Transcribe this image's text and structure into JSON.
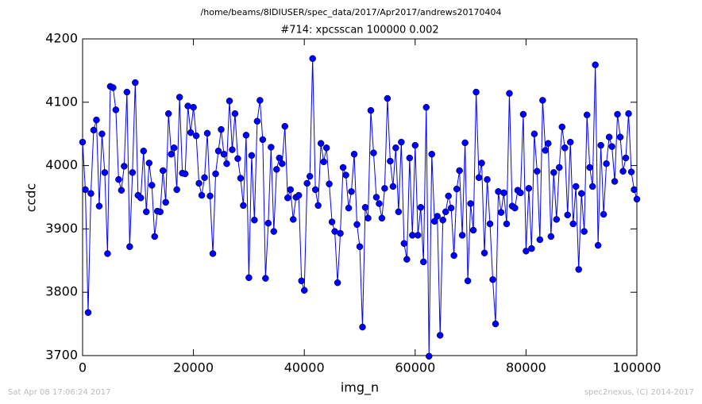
{
  "chart_data": {
    "type": "line",
    "suptitle": "/home/beams/8IDIUSER/spec_data/2017/Apr2017/andrews20170404",
    "title": "#714: xpcsscan 100000 0.002",
    "x_label": "img_n",
    "y_label": "ccdc",
    "footer_left": "Sat Apr 08 17:06:24 2017",
    "footer_right": "spec2nexus, (C) 2014-2017",
    "xlim": [
      0,
      100000
    ],
    "xticks": [
      0,
      20000,
      40000,
      60000,
      80000,
      100000
    ],
    "ylim": [
      3700,
      4200
    ],
    "yticks": [
      3700,
      3800,
      3900,
      4000,
      4100,
      4200
    ],
    "x": [
      0,
      500,
      1000,
      1500,
      2000,
      2500,
      3000,
      3500,
      4000,
      4500,
      5000,
      5500,
      6000,
      6500,
      7000,
      7500,
      8000,
      8500,
      9000,
      9500,
      10000,
      10500,
      11000,
      11500,
      12000,
      12500,
      13000,
      13500,
      14000,
      14500,
      15000,
      15500,
      16000,
      16500,
      17000,
      17500,
      18000,
      18500,
      19000,
      19500,
      20000,
      20500,
      21000,
      21500,
      22000,
      22500,
      23000,
      23500,
      24000,
      24500,
      25000,
      25500,
      26000,
      26500,
      27000,
      27500,
      28000,
      28500,
      29000,
      29500,
      30000,
      30500,
      31000,
      31500,
      32000,
      32500,
      33000,
      33500,
      34000,
      34500,
      35000,
      35500,
      36000,
      36500,
      37000,
      37500,
      38000,
      38500,
      39000,
      39500,
      40000,
      40500,
      41000,
      41500,
      42000,
      42500,
      43000,
      43500,
      44000,
      44500,
      45000,
      45500,
      46000,
      46500,
      47000,
      47500,
      48000,
      48500,
      49000,
      49500,
      50000,
      50500,
      51000,
      51500,
      52000,
      52500,
      53000,
      53500,
      54000,
      54500,
      55000,
      55500,
      56000,
      56500,
      57000,
      57500,
      58000,
      58500,
      59000,
      59500,
      60000,
      60500,
      61000,
      61500,
      62000,
      62500,
      63000,
      63500,
      64000,
      64500,
      65000,
      65500,
      66000,
      66500,
      67000,
      67500,
      68000,
      68500,
      69000,
      69500,
      70000,
      70500,
      71000,
      71500,
      72000,
      72500,
      73000,
      73500,
      74000,
      74500,
      75000,
      75500,
      76000,
      76500,
      77000,
      77500,
      78000,
      78500,
      79000,
      79500,
      80000,
      80500,
      81000,
      81500,
      82000,
      82500,
      83000,
      83500,
      84000,
      84500,
      85000,
      85500,
      86000,
      86500,
      87000,
      87500,
      88000,
      88500,
      89000,
      89500,
      90000,
      90500,
      91000,
      91500,
      92000,
      92500,
      93000,
      93500,
      94000,
      94500,
      95000,
      95500,
      96000,
      96500,
      97000,
      97500,
      98000,
      98500,
      99000,
      99500,
      100000
    ],
    "series": [
      {
        "color": "#0000ff",
        "values": [
          4037,
          3962,
          3768,
          3956,
          4056,
          4072,
          3936,
          4050,
          3989,
          3861,
          4125,
          4123,
          4088,
          3978,
          3961,
          3999,
          4116,
          3872,
          3989,
          4131,
          3953,
          3949,
          4023,
          3927,
          4004,
          3969,
          3888,
          3928,
          3927,
          3992,
          3942,
          4082,
          4018,
          4028,
          3962,
          4108,
          3988,
          3987,
          4094,
          4052,
          4092,
          4047,
          3972,
          3953,
          3981,
          4051,
          3952,
          3861,
          3987,
          4023,
          4057,
          4018,
          4003,
          4102,
          4025,
          4082,
          4011,
          3980,
          3937,
          4048,
          3823,
          4016,
          3914,
          4070,
          4103,
          4041,
          3822,
          3909,
          4029,
          3896,
          3994,
          4012,
          4003,
          4062,
          3949,
          3962,
          3915,
          3950,
          3953,
          3818,
          3803,
          3972,
          3983,
          4169,
          3962,
          3937,
          4035,
          4006,
          4028,
          3971,
          3911,
          3896,
          3815,
          3893,
          3997,
          3985,
          3933,
          3959,
          4018,
          3907,
          3872,
          3745,
          3934,
          3917,
          4087,
          4020,
          3950,
          3940,
          3917,
          3964,
          4106,
          4007,
          3967,
          4028,
          3927,
          4037,
          3877,
          3852,
          4012,
          3890,
          4032,
          3890,
          3934,
          3848,
          4092,
          3699,
          4018,
          3912,
          3920,
          3732,
          3914,
          3927,
          3952,
          3933,
          3858,
          3963,
          3992,
          3890,
          4036,
          3818,
          3940,
          3898,
          4116,
          3981,
          4004,
          3862,
          3978,
          3908,
          3820,
          3750,
          3959,
          3926,
          3957,
          3908,
          4114,
          3936,
          3933,
          3961,
          3957,
          4081,
          3865,
          3964,
          3869,
          4050,
          3991,
          3883,
          4103,
          4024,
          4035,
          3888,
          3989,
          3915,
          3997,
          4061,
          4028,
          3922,
          4037,
          3908,
          3967,
          3836,
          3956,
          3896,
          4080,
          3997,
          3967,
          4159,
          3874,
          4032,
          3923,
          4003,
          4045,
          4030,
          3975,
          4081,
          4045,
          3991,
          4012,
          4082,
          3990,
          3962,
          3947
        ]
      }
    ]
  }
}
